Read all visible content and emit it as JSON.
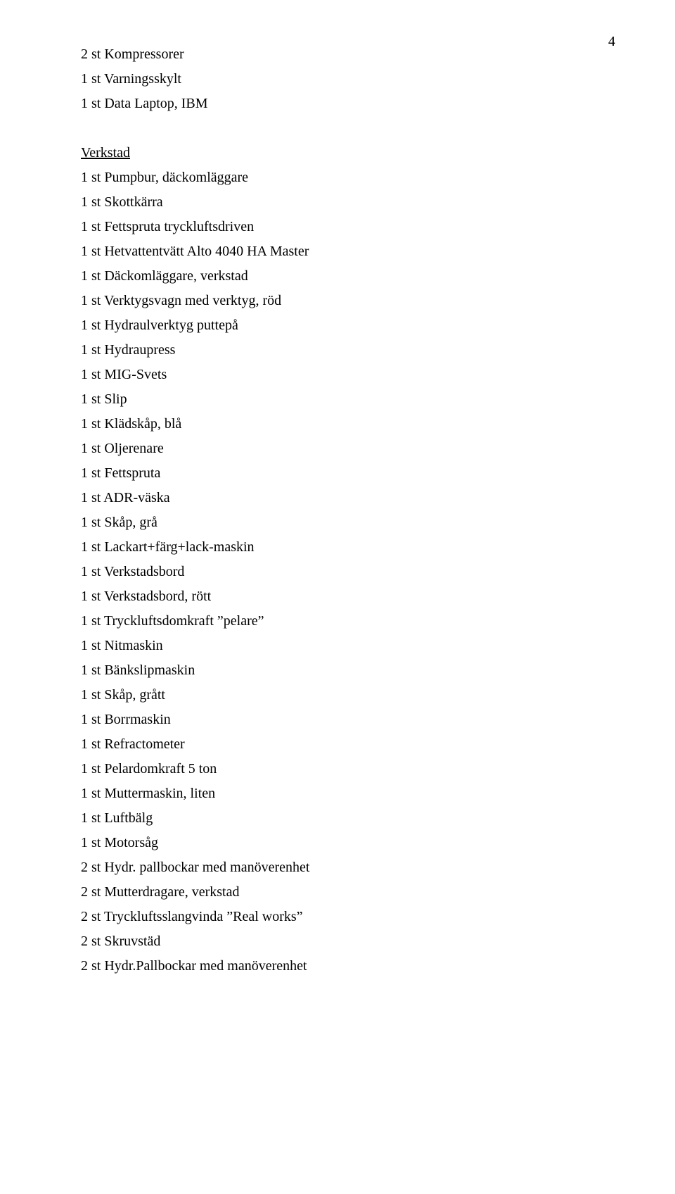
{
  "page_number": "4",
  "text_color": "#000000",
  "background_color": "#ffffff",
  "font_family": "Times New Roman",
  "body_font_size_pt": 15,
  "line_height": 1.75,
  "group1": {
    "items": [
      "2 st Kompressorer",
      "1 st Varningsskylt",
      "1 st Data Laptop, IBM"
    ]
  },
  "group2": {
    "heading": "Verkstad",
    "items": [
      "1 st Pumpbur, däckomläggare",
      "1 st Skottkärra",
      "1 st Fettspruta tryckluftsdriven",
      "1 st Hetvattentvätt Alto 4040 HA Master",
      "1 st Däckomläggare, verkstad",
      "1 st Verktygsvagn med verktyg, röd",
      "1 st Hydraulverktyg puttepå",
      "1 st Hydraupress",
      "1 st MIG-Svets",
      "1 st Slip",
      "1 st Klädskåp, blå",
      "1 st Oljerenare",
      "1 st Fettspruta",
      "1 st ADR-väska",
      "1 st Skåp, grå",
      "1 st Lackart+färg+lack-maskin",
      "1 st Verkstadsbord",
      "1 st Verkstadsbord, rött",
      "1 st Tryckluftsdomkraft ”pelare”",
      "1 st Nitmaskin",
      "1 st Bänkslipmaskin",
      "1 st Skåp, grått",
      "1 st Borrmaskin",
      "1 st Refractometer",
      "1 st Pelardomkraft 5 ton",
      "1 st Muttermaskin, liten",
      "1 st Luftbälg",
      "1 st Motorsåg",
      "2 st Hydr. pallbockar med manöverenhet",
      "2 st Mutterdragare, verkstad",
      "2 st Tryckluftsslangvinda ”Real works”",
      "2 st Skruvstäd",
      "2 st Hydr.Pallbockar med manöverenhet"
    ]
  }
}
